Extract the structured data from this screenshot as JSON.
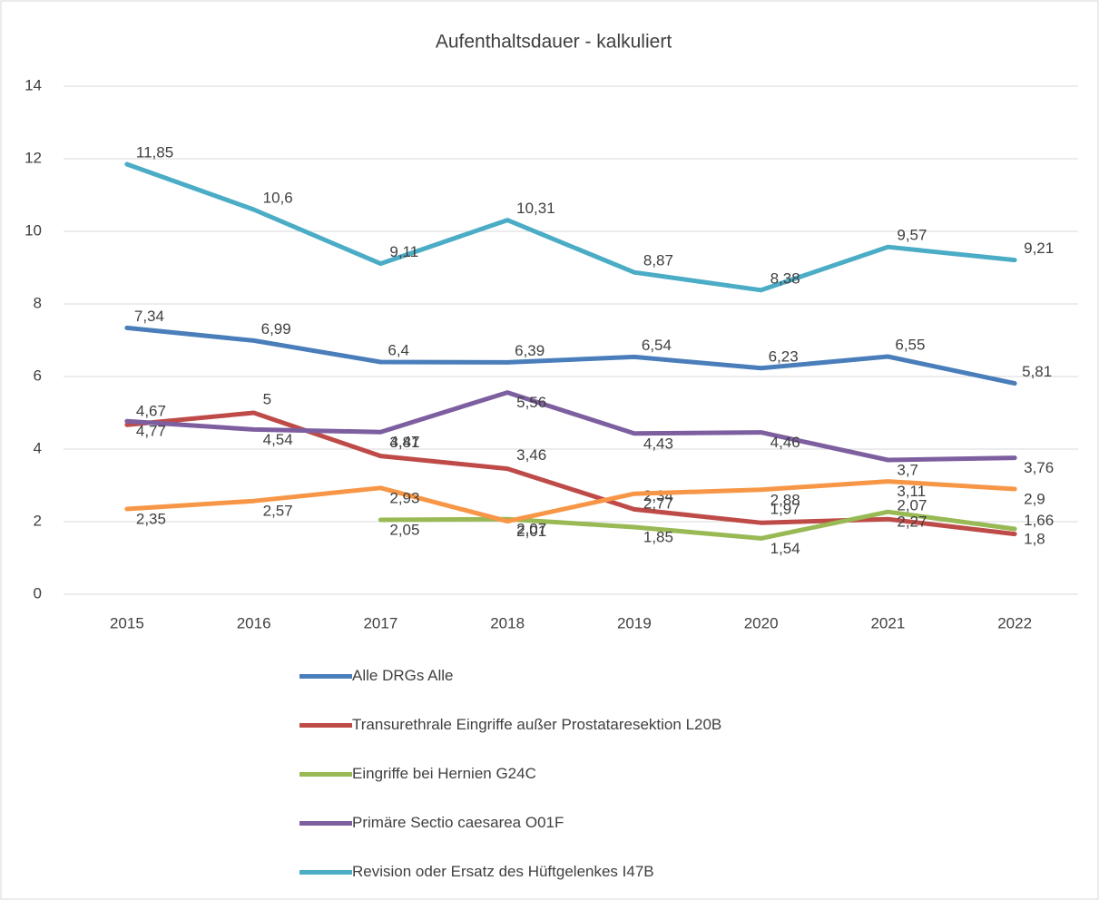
{
  "chart_data": {
    "type": "line",
    "title": "Aufenthaltsdauer - kalkuliert",
    "categories": [
      "2015",
      "2016",
      "2017",
      "2018",
      "2019",
      "2020",
      "2021",
      "2022"
    ],
    "ylim": [
      0,
      14
    ],
    "yticks": [
      0,
      2,
      4,
      6,
      8,
      10,
      12,
      14
    ],
    "grid": true,
    "legend": "bottom",
    "series": [
      {
        "name": "Alle DRGs Alle",
        "color": "#4a7ebb",
        "values": [
          7.34,
          6.99,
          6.4,
          6.39,
          6.54,
          6.23,
          6.55,
          5.81
        ],
        "value_labels": [
          "7,34",
          "6,99",
          "6,4",
          "6,39",
          "6,54",
          "6,23",
          "6,55",
          "5,81"
        ]
      },
      {
        "name": "Transurethrale Eingriffe außer Prostataresektion L20B",
        "color": "#be4b48",
        "values": [
          4.67,
          5,
          3.81,
          3.46,
          2.34,
          1.97,
          2.07,
          1.66
        ],
        "value_labels": [
          "4,67",
          "5",
          "3,81",
          "3,46",
          "2,34",
          "1,97",
          "2,07",
          "1,66"
        ]
      },
      {
        "name": " Eingriffe bei Hernien G24C",
        "color": "#98b954",
        "values": [
          null,
          null,
          2.05,
          2.07,
          1.85,
          1.54,
          2.27,
          1.8
        ],
        "value_labels": [
          null,
          null,
          "2,05",
          "2,07",
          "1,85",
          "1,54",
          "2,27",
          "1,8"
        ]
      },
      {
        "name": "Primäre Sectio caesarea  O01F",
        "color": "#7d5fa0",
        "values": [
          4.77,
          4.54,
          4.47,
          5.56,
          4.43,
          4.46,
          3.7,
          3.76
        ],
        "value_labels": [
          "4,77",
          "4,54",
          "4,47",
          "5,56",
          "4,43",
          "4,46",
          "3,7",
          "3,76"
        ]
      },
      {
        "name": "Revision oder Ersatz des Hüftgelenkes I47B",
        "color": "#4bacc6",
        "values": [
          11.85,
          10.6,
          9.11,
          10.31,
          8.87,
          8.38,
          9.57,
          9.21
        ],
        "value_labels": [
          "11,85",
          "10,6",
          "9,11",
          "10,31",
          "8,87",
          "8,38",
          "9,57",
          "9,21"
        ]
      },
      {
        "color": "#f79646",
        "values": [
          2.35,
          2.57,
          2.93,
          2.01,
          2.77,
          2.88,
          3.11,
          2.9
        ],
        "value_labels": [
          "2,35",
          "2,57",
          "2,93",
          "2,01",
          "2,77",
          "2,88",
          "3,11",
          "2,9"
        ]
      }
    ]
  }
}
